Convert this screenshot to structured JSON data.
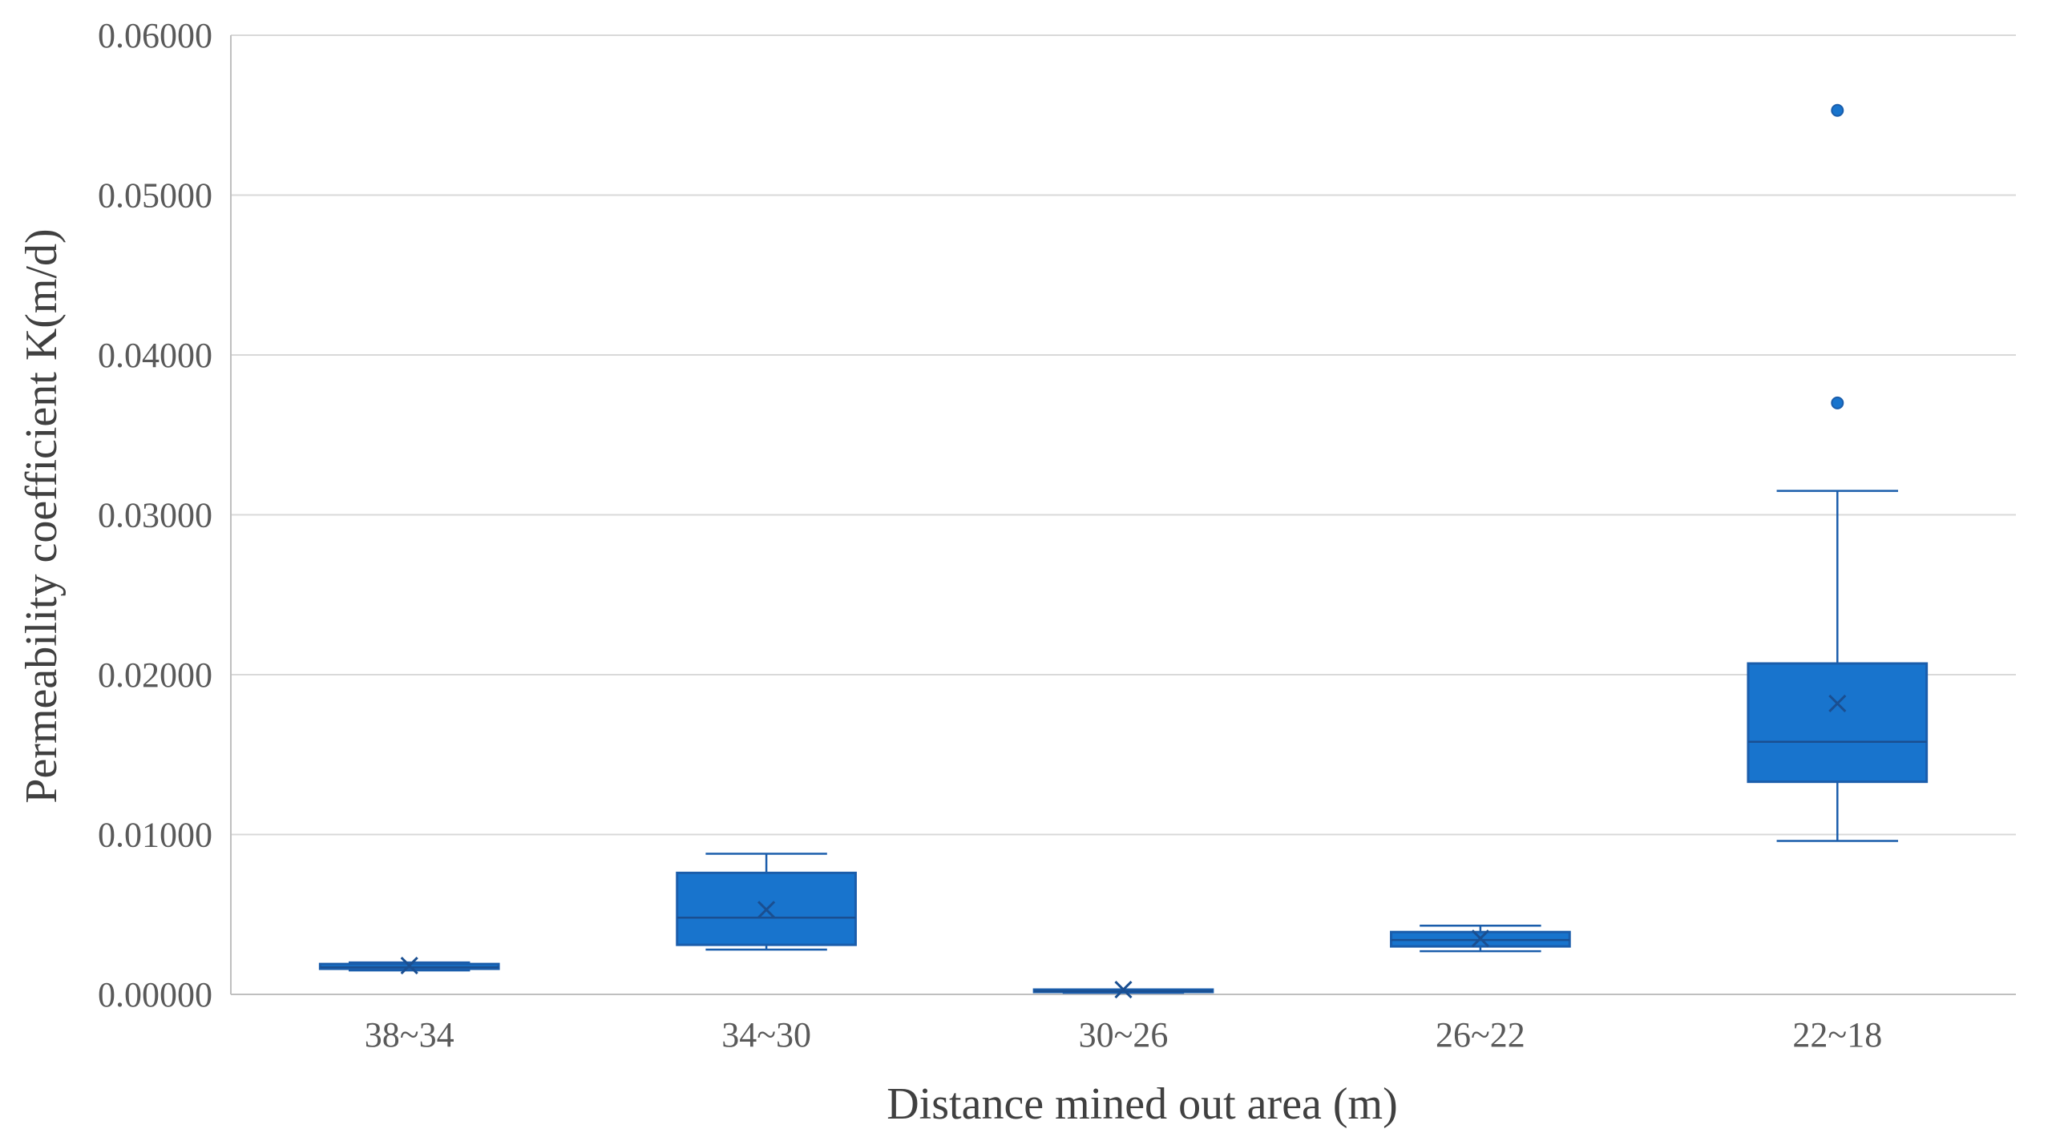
{
  "chart_data": {
    "type": "box",
    "title": "",
    "xlabel": "Distance mined out area (m)",
    "ylabel": "Permeability coefficient K(m/d)",
    "ylim": [
      0,
      0.06
    ],
    "yticks": [
      "0.00000",
      "0.01000",
      "0.02000",
      "0.03000",
      "0.04000",
      "0.05000",
      "0.06000"
    ],
    "ytick_values": [
      0,
      0.01,
      0.02,
      0.03,
      0.04,
      0.05,
      0.06
    ],
    "grid": true,
    "legend": "none",
    "color": "#1874CD",
    "edge_color": "#1A5DAB",
    "categories": [
      "38~34",
      "34~30",
      "30~26",
      "26~22",
      "22~18"
    ],
    "boxes": [
      {
        "category": "38~34",
        "whisker_low": 0.0015,
        "q1": 0.0016,
        "median": 0.0017,
        "q3": 0.0019,
        "whisker_high": 0.002,
        "mean": 0.0018,
        "outliers": []
      },
      {
        "category": "34~30",
        "whisker_low": 0.0028,
        "q1": 0.0031,
        "median": 0.0048,
        "q3": 0.0076,
        "whisker_high": 0.0088,
        "mean": 0.0053,
        "outliers": []
      },
      {
        "category": "30~26",
        "whisker_low": 0.0001,
        "q1": 0.0002,
        "median": 0.0002,
        "q3": 0.0003,
        "whisker_high": 0.0003,
        "mean": 0.0003,
        "outliers": []
      },
      {
        "category": "26~22",
        "whisker_low": 0.0027,
        "q1": 0.003,
        "median": 0.0034,
        "q3": 0.0039,
        "whisker_high": 0.0043,
        "mean": 0.0035,
        "outliers": []
      },
      {
        "category": "22~18",
        "whisker_low": 0.0096,
        "q1": 0.0133,
        "median": 0.0158,
        "q3": 0.0207,
        "whisker_high": 0.0315,
        "mean": 0.0182,
        "outliers": [
          0.037,
          0.0553
        ]
      }
    ]
  }
}
